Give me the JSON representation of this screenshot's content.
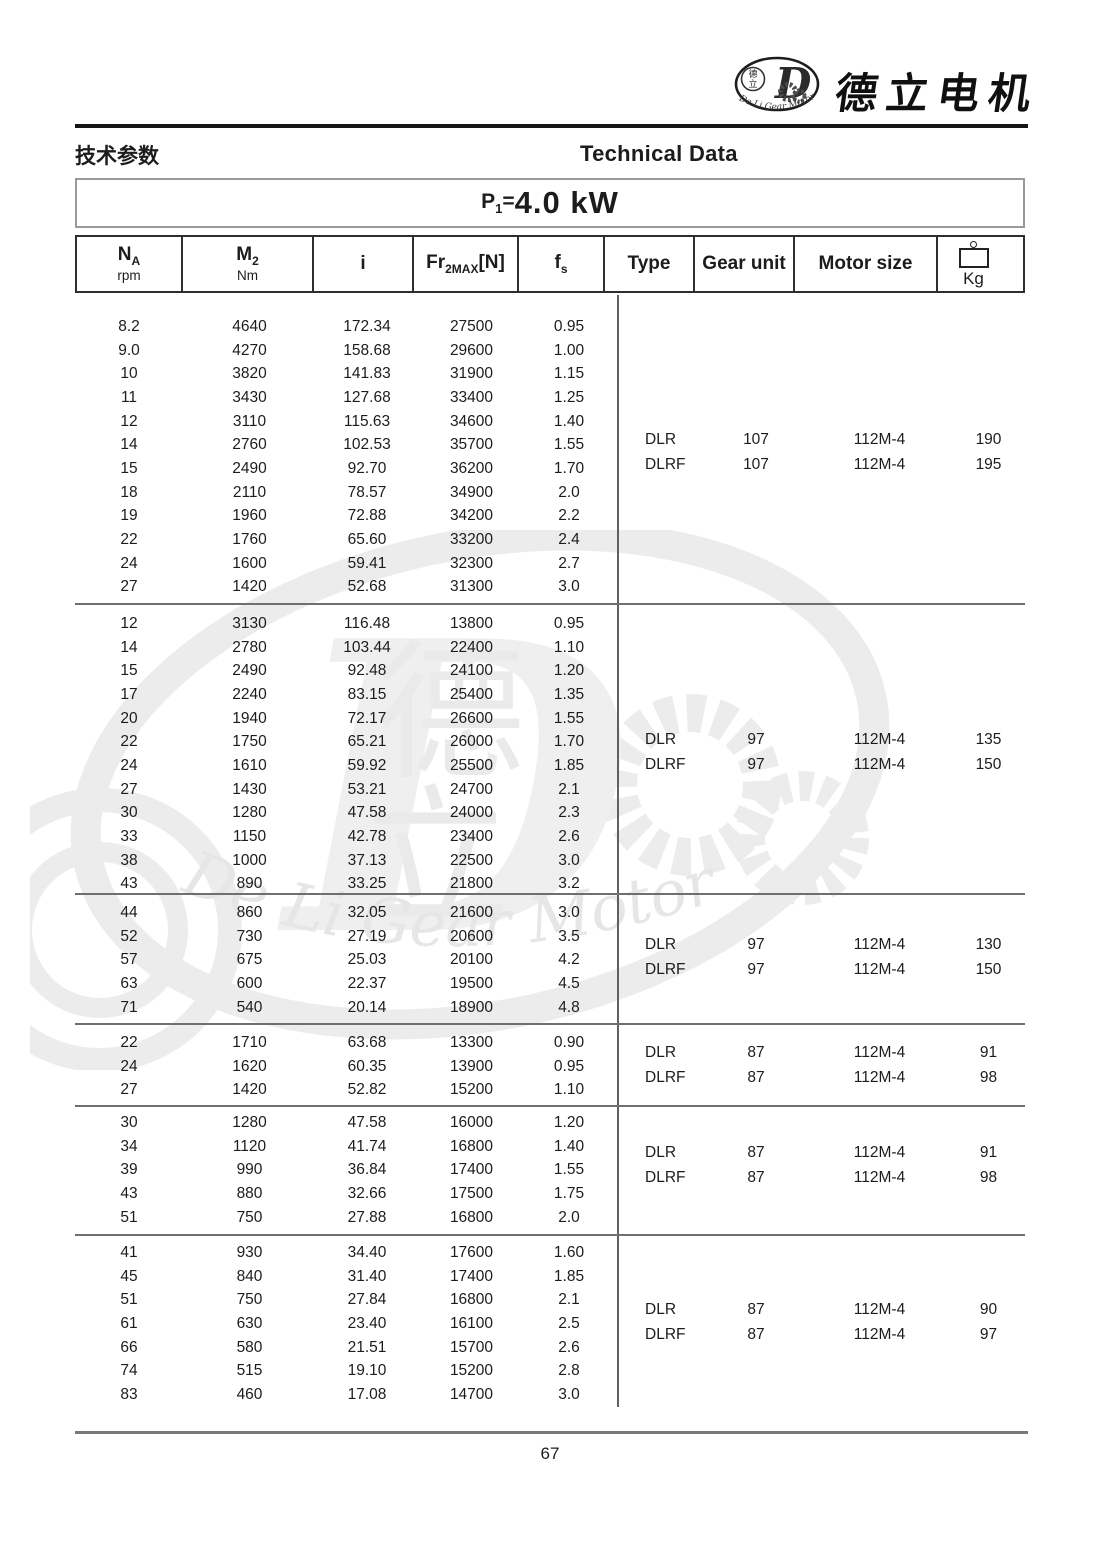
{
  "header": {
    "brand_cn": "德立电机",
    "logo": {
      "big_letter": "D",
      "small_cn_top": "德",
      "small_cn_bottom": "立",
      "arc_text": "De Li Gear Motor"
    },
    "section_title_cn": "技术参数",
    "section_title_en": "Technical Data"
  },
  "title": {
    "p": "P",
    "p_sub": "1",
    "eq": "=",
    "value": "4.0 kW"
  },
  "table": {
    "columns": [
      {
        "name": "speed",
        "main": "N",
        "sub": "A",
        "unit": "rpm"
      },
      {
        "name": "torque",
        "main": "M",
        "sub": "2",
        "unit": "Nm"
      },
      {
        "name": "ratio",
        "main": "i"
      },
      {
        "name": "radial-force",
        "pre": "Fr",
        "sub": "2MAX",
        "post": "[N]"
      },
      {
        "name": "service-factor",
        "main": "f",
        "sub": "s"
      },
      {
        "name": "type",
        "main": "Type"
      },
      {
        "name": "gear-unit",
        "main": "Gear unit"
      },
      {
        "name": "motor-size",
        "main": "Motor size"
      },
      {
        "name": "weight",
        "main": "Kg",
        "icon": "weight-icon"
      }
    ],
    "sections": [
      {
        "rows": [
          [
            "8.2",
            "4640",
            "172.34",
            "27500",
            "0.95"
          ],
          [
            "9.0",
            "4270",
            "158.68",
            "29600",
            "1.00"
          ],
          [
            "10",
            "3820",
            "141.83",
            "31900",
            "1.15"
          ],
          [
            "11",
            "3430",
            "127.68",
            "33400",
            "1.25"
          ],
          [
            "12",
            "3110",
            "115.63",
            "34600",
            "1.40"
          ],
          [
            "14",
            "2760",
            "102.53",
            "35700",
            "1.55"
          ],
          [
            "15",
            "2490",
            "92.70",
            "36200",
            "1.70"
          ],
          [
            "18",
            "2110",
            "78.57",
            "34900",
            "2.0"
          ],
          [
            "19",
            "1960",
            "72.88",
            "34200",
            "2.2"
          ],
          [
            "22",
            "1760",
            "65.60",
            "33200",
            "2.4"
          ],
          [
            "24",
            "1600",
            "59.41",
            "32300",
            "2.7"
          ],
          [
            "27",
            "1420",
            "52.68",
            "31300",
            "3.0"
          ]
        ],
        "variants": [
          {
            "type": "DLR",
            "gear_unit": "107",
            "motor_size": "112M-4",
            "kg": "190"
          },
          {
            "type": "DLRF",
            "gear_unit": "107",
            "motor_size": "112M-4",
            "kg": "195"
          }
        ]
      },
      {
        "rows": [
          [
            "12",
            "3130",
            "116.48",
            "13800",
            "0.95"
          ],
          [
            "14",
            "2780",
            "103.44",
            "22400",
            "1.10"
          ],
          [
            "15",
            "2490",
            "92.48",
            "24100",
            "1.20"
          ],
          [
            "17",
            "2240",
            "83.15",
            "25400",
            "1.35"
          ],
          [
            "20",
            "1940",
            "72.17",
            "26600",
            "1.55"
          ],
          [
            "22",
            "1750",
            "65.21",
            "26000",
            "1.70"
          ],
          [
            "24",
            "1610",
            "59.92",
            "25500",
            "1.85"
          ],
          [
            "27",
            "1430",
            "53.21",
            "24700",
            "2.1"
          ],
          [
            "30",
            "1280",
            "47.58",
            "24000",
            "2.3"
          ],
          [
            "33",
            "1150",
            "42.78",
            "23400",
            "2.6"
          ],
          [
            "38",
            "1000",
            "37.13",
            "22500",
            "3.0"
          ],
          [
            "43",
            "890",
            "33.25",
            "21800",
            "3.2"
          ]
        ],
        "variants": [
          {
            "type": "DLR",
            "gear_unit": "97",
            "motor_size": "112M-4",
            "kg": "135"
          },
          {
            "type": "DLRF",
            "gear_unit": "97",
            "motor_size": "112M-4",
            "kg": "150"
          }
        ]
      },
      {
        "rows": [
          [
            "44",
            "860",
            "32.05",
            "21600",
            "3.0"
          ],
          [
            "52",
            "730",
            "27.19",
            "20600",
            "3.5"
          ],
          [
            "57",
            "675",
            "25.03",
            "20100",
            "4.2"
          ],
          [
            "63",
            "600",
            "22.37",
            "19500",
            "4.5"
          ],
          [
            "71",
            "540",
            "20.14",
            "18900",
            "4.8"
          ]
        ],
        "variants": [
          {
            "type": "DLR",
            "gear_unit": "97",
            "motor_size": "112M-4",
            "kg": "130"
          },
          {
            "type": "DLRF",
            "gear_unit": "97",
            "motor_size": "112M-4",
            "kg": "150"
          }
        ]
      },
      {
        "rows": [
          [
            "22",
            "1710",
            "63.68",
            "13300",
            "0.90"
          ],
          [
            "24",
            "1620",
            "60.35",
            "13900",
            "0.95"
          ],
          [
            "27",
            "1420",
            "52.82",
            "15200",
            "1.10"
          ]
        ],
        "variants": [
          {
            "type": "DLR",
            "gear_unit": "87",
            "motor_size": "112M-4",
            "kg": "91"
          },
          {
            "type": "DLRF",
            "gear_unit": "87",
            "motor_size": "112M-4",
            "kg": "98"
          }
        ]
      },
      {
        "rows": [
          [
            "30",
            "1280",
            "47.58",
            "16000",
            "1.20"
          ],
          [
            "34",
            "1120",
            "41.74",
            "16800",
            "1.40"
          ],
          [
            "39",
            "990",
            "36.84",
            "17400",
            "1.55"
          ],
          [
            "43",
            "880",
            "32.66",
            "17500",
            "1.75"
          ],
          [
            "51",
            "750",
            "27.88",
            "16800",
            "2.0"
          ]
        ],
        "variants": [
          {
            "type": "DLR",
            "gear_unit": "87",
            "motor_size": "112M-4",
            "kg": "91"
          },
          {
            "type": "DLRF",
            "gear_unit": "87",
            "motor_size": "112M-4",
            "kg": "98"
          }
        ]
      },
      {
        "rows": [
          [
            "41",
            "930",
            "34.40",
            "17600",
            "1.60"
          ],
          [
            "45",
            "840",
            "31.40",
            "17400",
            "1.85"
          ],
          [
            "51",
            "750",
            "27.84",
            "16800",
            "2.1"
          ],
          [
            "61",
            "630",
            "23.40",
            "16100",
            "2.5"
          ],
          [
            "66",
            "580",
            "21.51",
            "15700",
            "2.6"
          ],
          [
            "74",
            "515",
            "19.10",
            "15200",
            "2.8"
          ],
          [
            "83",
            "460",
            "17.08",
            "14700",
            "3.0"
          ]
        ],
        "variants": [
          {
            "type": "DLR",
            "gear_unit": "87",
            "motor_size": "112M-4",
            "kg": "90"
          },
          {
            "type": "DLRF",
            "gear_unit": "87",
            "motor_size": "112M-4",
            "kg": "97"
          }
        ]
      }
    ]
  },
  "watermark": {
    "text": "De Li Gear Motor",
    "cn": "德立"
  },
  "footer": {
    "page_number": "67"
  },
  "colors": {
    "ink": "#1c1c1c",
    "line_dark": "#2e2e2e",
    "line_gray": "#6f6f6f",
    "watermark": "#ececec"
  }
}
